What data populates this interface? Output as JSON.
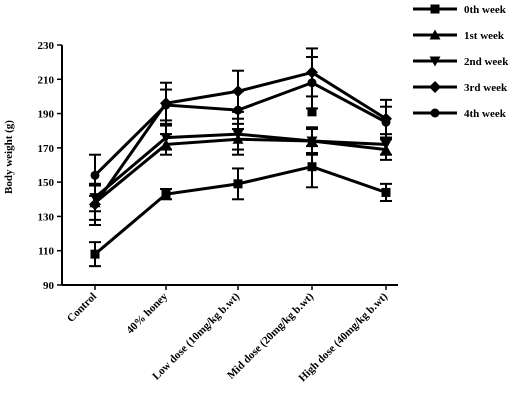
{
  "chart_data": {
    "type": "line",
    "title": "",
    "xlabel": "",
    "ylabel": "Body weight (g)",
    "ylim": [
      90,
      230
    ],
    "yticks": [
      90,
      110,
      130,
      150,
      170,
      190,
      210,
      230
    ],
    "categories": [
      "Control",
      "40% honey",
      "Low dose (10mg/kg b.wt)",
      "Mid dose (20mg/kg b.wt)",
      "High dose (40mg/kg b.wt)"
    ],
    "legend_position": "top-right",
    "grid": false,
    "series": [
      {
        "name": "0th week",
        "marker": "square",
        "values": [
          108,
          143,
          149,
          159,
          144
        ],
        "errors": [
          7,
          3,
          9,
          12,
          5
        ]
      },
      {
        "name": "1st week",
        "marker": "triangle-up",
        "values": [
          138,
          172,
          175,
          174,
          169
        ],
        "errors": [
          10,
          6,
          9,
          8,
          6
        ]
      },
      {
        "name": "2nd week",
        "marker": "triangle-down",
        "values": [
          141,
          176,
          178,
          174,
          172
        ],
        "errors": [
          8,
          7,
          9,
          7,
          6
        ]
      },
      {
        "name": "3rd week",
        "marker": "diamond",
        "values": [
          137,
          196,
          203,
          214,
          187
        ],
        "errors": [
          12,
          12,
          12,
          14,
          11
        ]
      },
      {
        "name": "4th week",
        "marker": "circle",
        "values": [
          154,
          195,
          192,
          208,
          185
        ],
        "errors": [
          12,
          9,
          11,
          15,
          9
        ]
      }
    ],
    "annotations": [
      {
        "series": "0th week",
        "category": "Mid dose (20mg/kg b.wt)",
        "value": 191,
        "marker": "square"
      }
    ]
  }
}
